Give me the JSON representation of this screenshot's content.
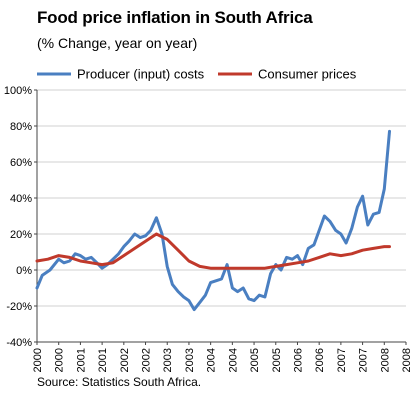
{
  "chart_data": {
    "type": "line",
    "title": "Food price inflation in South Africa",
    "subtitle": "(% Change, year on year)",
    "source": "Source: Statistics South Africa.",
    "xlabel": "",
    "ylabel": "",
    "ylim": [
      -40,
      100
    ],
    "yticks": [
      -40,
      -20,
      0,
      20,
      40,
      60,
      80,
      100
    ],
    "ytick_labels": [
      "-40%",
      "-20%",
      "0%",
      "20%",
      "40%",
      "60%",
      "80%",
      "100%"
    ],
    "xlim": [
      2000.0,
      2008.5
    ],
    "xticks": [
      2000.0,
      2000.5,
      2001.0,
      2001.5,
      2002.0,
      2002.5,
      2003.0,
      2003.5,
      2004.0,
      2004.5,
      2005.0,
      2005.5,
      2006.0,
      2006.5,
      2007.0,
      2007.5,
      2008.0,
      2008.5
    ],
    "xtick_labels": [
      "2000",
      "2000",
      "2001",
      "2001",
      "2002",
      "2002",
      "2003",
      "2003",
      "2004",
      "2004",
      "2005",
      "2005",
      "2006",
      "2006",
      "2007",
      "2007",
      "2008",
      "2008"
    ],
    "grid": true,
    "legend": "top",
    "series": [
      {
        "name": "Producer (input) costs",
        "color": "#4a7fc1",
        "points": [
          [
            2000.0,
            -10
          ],
          [
            2000.12,
            -3
          ],
          [
            2000.3,
            0
          ],
          [
            2000.5,
            6
          ],
          [
            2000.62,
            4
          ],
          [
            2000.75,
            5
          ],
          [
            2000.88,
            9
          ],
          [
            2001.0,
            8
          ],
          [
            2001.12,
            6
          ],
          [
            2001.25,
            7
          ],
          [
            2001.38,
            4
          ],
          [
            2001.5,
            1
          ],
          [
            2001.62,
            3
          ],
          [
            2001.75,
            6
          ],
          [
            2001.88,
            9
          ],
          [
            2002.0,
            13
          ],
          [
            2002.12,
            16
          ],
          [
            2002.25,
            20
          ],
          [
            2002.38,
            18
          ],
          [
            2002.5,
            19
          ],
          [
            2002.62,
            22
          ],
          [
            2002.75,
            29
          ],
          [
            2002.88,
            20
          ],
          [
            2003.0,
            2
          ],
          [
            2003.12,
            -8
          ],
          [
            2003.25,
            -12
          ],
          [
            2003.38,
            -15
          ],
          [
            2003.5,
            -17
          ],
          [
            2003.62,
            -22
          ],
          [
            2003.75,
            -18
          ],
          [
            2003.88,
            -14
          ],
          [
            2004.0,
            -7
          ],
          [
            2004.12,
            -6
          ],
          [
            2004.25,
            -5
          ],
          [
            2004.38,
            3
          ],
          [
            2004.5,
            -10
          ],
          [
            2004.62,
            -12
          ],
          [
            2004.75,
            -10
          ],
          [
            2004.88,
            -16
          ],
          [
            2005.0,
            -17
          ],
          [
            2005.12,
            -14
          ],
          [
            2005.25,
            -15
          ],
          [
            2005.38,
            -2
          ],
          [
            2005.5,
            3
          ],
          [
            2005.62,
            0
          ],
          [
            2005.75,
            7
          ],
          [
            2005.88,
            6
          ],
          [
            2006.0,
            8
          ],
          [
            2006.12,
            3
          ],
          [
            2006.25,
            12
          ],
          [
            2006.38,
            14
          ],
          [
            2006.5,
            22
          ],
          [
            2006.62,
            30
          ],
          [
            2006.75,
            27
          ],
          [
            2006.88,
            22
          ],
          [
            2007.0,
            20
          ],
          [
            2007.12,
            15
          ],
          [
            2007.25,
            23
          ],
          [
            2007.38,
            35
          ],
          [
            2007.5,
            41
          ],
          [
            2007.62,
            25
          ],
          [
            2007.75,
            31
          ],
          [
            2007.88,
            32
          ],
          [
            2008.0,
            45
          ],
          [
            2008.12,
            77
          ]
        ]
      },
      {
        "name": "Consumer prices",
        "color": "#c0392b",
        "points": [
          [
            2000.0,
            5
          ],
          [
            2000.25,
            6
          ],
          [
            2000.5,
            8
          ],
          [
            2000.75,
            7
          ],
          [
            2001.0,
            5
          ],
          [
            2001.25,
            4
          ],
          [
            2001.5,
            3
          ],
          [
            2001.75,
            4
          ],
          [
            2002.0,
            8
          ],
          [
            2002.25,
            12
          ],
          [
            2002.5,
            16
          ],
          [
            2002.75,
            20
          ],
          [
            2003.0,
            17
          ],
          [
            2003.25,
            11
          ],
          [
            2003.5,
            5
          ],
          [
            2003.75,
            2
          ],
          [
            2004.0,
            1
          ],
          [
            2004.25,
            1
          ],
          [
            2004.5,
            1
          ],
          [
            2004.75,
            1
          ],
          [
            2005.0,
            1
          ],
          [
            2005.25,
            1
          ],
          [
            2005.5,
            2
          ],
          [
            2005.75,
            3
          ],
          [
            2006.0,
            4
          ],
          [
            2006.25,
            5
          ],
          [
            2006.5,
            7
          ],
          [
            2006.75,
            9
          ],
          [
            2007.0,
            8
          ],
          [
            2007.25,
            9
          ],
          [
            2007.5,
            11
          ],
          [
            2007.75,
            12
          ],
          [
            2008.0,
            13
          ],
          [
            2008.12,
            13
          ]
        ]
      }
    ]
  }
}
